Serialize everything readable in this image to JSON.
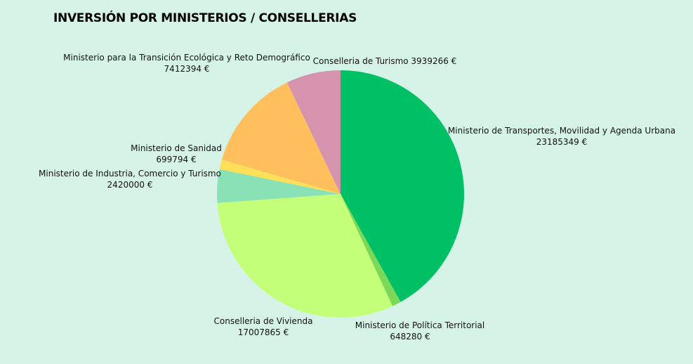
{
  "chart_data": {
    "type": "pie",
    "title": "INVERSIÓN POR MINISTERIOS / CONSELLERIAS",
    "unit": "€",
    "slices": [
      {
        "name": "Ministerio de Transportes, Movilidad y Agenda Urbana",
        "value": 23185349,
        "value_text": "23185349 €",
        "color": "#00c065"
      },
      {
        "name": "Ministerio de Política Territorial",
        "value": 648280,
        "value_text": "648280 €",
        "color": "#7bd957"
      },
      {
        "name": "Conselleria de Vivienda",
        "value": 17007865,
        "value_text": "17007865 €",
        "color": "#c3ff79"
      },
      {
        "name": "Ministerio de Industria, Comercio y Turismo",
        "value": 2420000,
        "value_text": "2420000 €",
        "color": "#89e2b5"
      },
      {
        "name": "Ministerio de Sanidad",
        "value": 699794,
        "value_text": "699794 €",
        "color": "#ffe058"
      },
      {
        "name": "Ministerio para la Transición Ecológica y Reto Demográfico",
        "value": 7412394,
        "value_text": "7412394 €",
        "color": "#ffbf5c"
      },
      {
        "name": "Conselleria de Turismo",
        "value": 3939266,
        "value_text": "3939266 €",
        "color": "#d593ad"
      }
    ]
  }
}
